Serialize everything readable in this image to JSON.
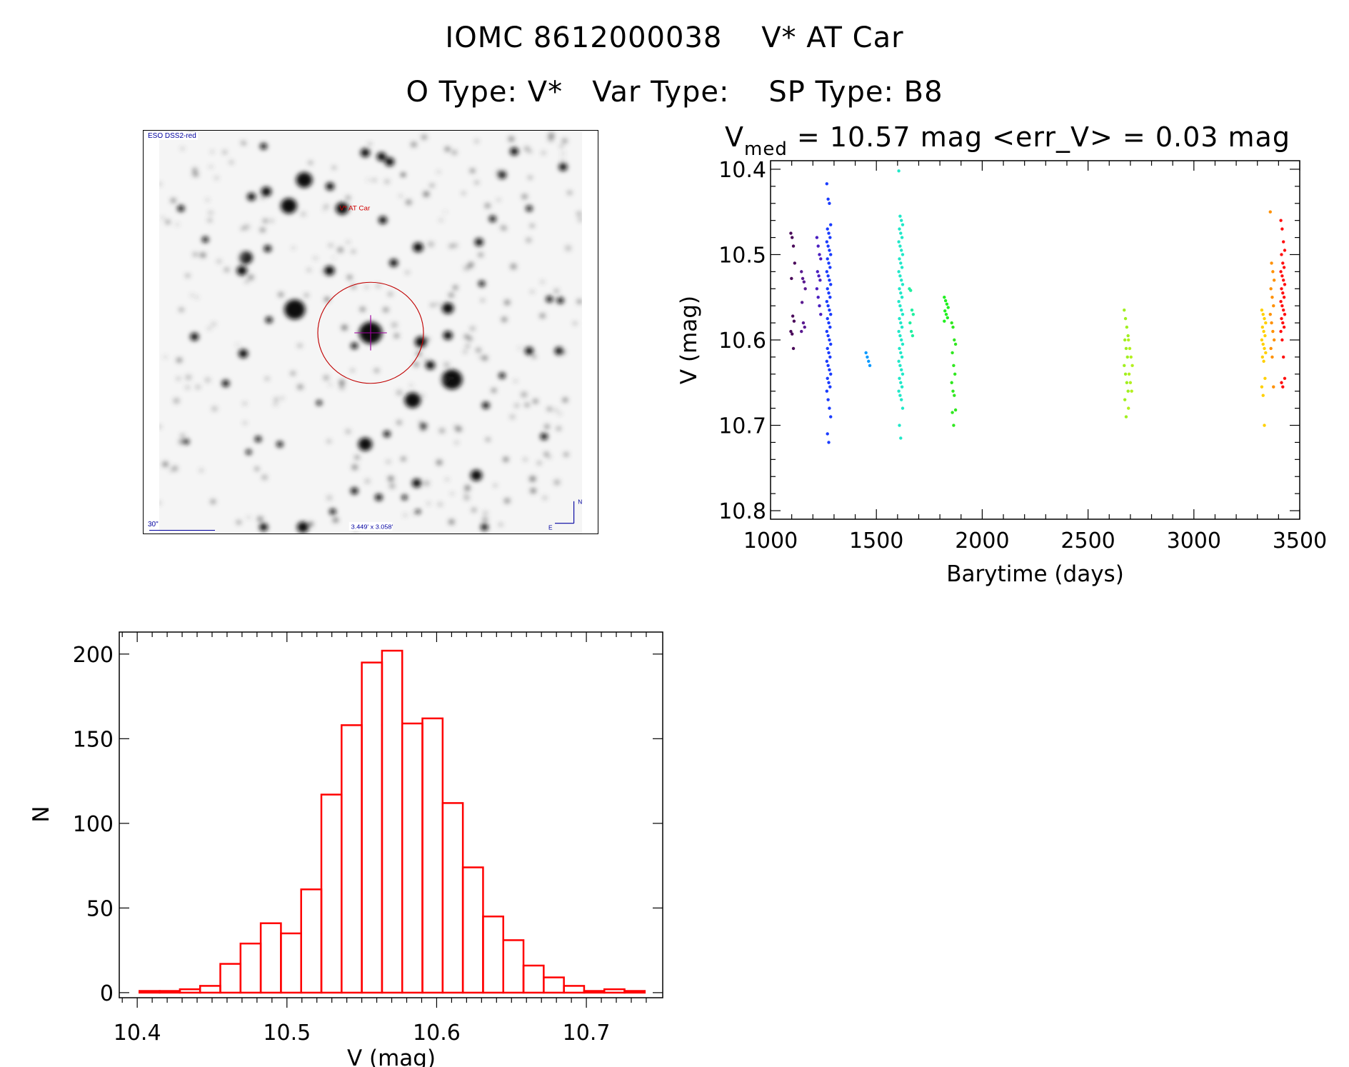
{
  "header": {
    "title_line1": "IOMC 8612000038    V* AT Car",
    "title_line2": "O Type: V*   Var Type:    SP Type: B8",
    "stats": {
      "v_symbol": "V",
      "v_sub": "med",
      "text": " = 10.57 mag <err_V> = 0.03 mag"
    }
  },
  "sky_image": {
    "survey_label": "ESO DSS2-red",
    "target_label": "V* AT Car",
    "scale_label": "30\"",
    "fov_label": "3.449' x 3.058'",
    "north_label": "N",
    "east_label": "E",
    "overlay_color": "#c00000",
    "annotation_color": "#0000a0"
  },
  "chart_data": [
    {
      "type": "scatter",
      "title": "",
      "xlabel": "Barytime (days)",
      "ylabel": "V (mag)",
      "xlim": [
        1000,
        3500
      ],
      "ylim": [
        10.81,
        10.39
      ],
      "y_inverted": true,
      "xticks": [
        "1000",
        "1500",
        "2000",
        "2500",
        "3000",
        "3500"
      ],
      "yticks": [
        "10.4",
        "10.5",
        "10.6",
        "10.7",
        "10.8"
      ],
      "grid": false,
      "groups": [
        {
          "x": 1105,
          "color": "#4a0a5a",
          "y": [
            10.475,
            10.48,
            10.49,
            10.51,
            10.528,
            10.572,
            10.578,
            10.59,
            10.593,
            10.61
          ]
        },
        {
          "x": 1155,
          "color": "#5a1a90",
          "y": [
            10.52,
            10.528,
            10.532,
            10.54,
            10.556,
            10.58,
            10.585,
            10.59
          ]
        },
        {
          "x": 1228,
          "color": "#4a1ec0",
          "y": [
            10.48,
            10.49,
            10.5,
            10.505,
            10.52,
            10.525,
            10.53,
            10.54,
            10.55,
            10.56,
            10.57
          ]
        },
        {
          "x": 1275,
          "color": "#1a3cff",
          "y": [
            10.417,
            10.435,
            10.44,
            10.465,
            10.47,
            10.475,
            10.48,
            10.485,
            10.49,
            10.495,
            10.5,
            10.505,
            10.51,
            10.515,
            10.52,
            10.525,
            10.53,
            10.535,
            10.54,
            10.545,
            10.55,
            10.555,
            10.56,
            10.565,
            10.57,
            10.575,
            10.58,
            10.585,
            10.59,
            10.595,
            10.6,
            10.605,
            10.61,
            10.615,
            10.62,
            10.625,
            10.63,
            10.635,
            10.64,
            10.645,
            10.65,
            10.655,
            10.66,
            10.67,
            10.68,
            10.69,
            10.71,
            10.72
          ]
        },
        {
          "x": 1460,
          "color": "#0a9aff",
          "y": [
            10.615,
            10.62,
            10.625,
            10.63
          ]
        },
        {
          "x": 1615,
          "color": "#20e8c8",
          "y": [
            10.402,
            10.455,
            10.46,
            10.465,
            10.47,
            10.475,
            10.48,
            10.485,
            10.49,
            10.495,
            10.5,
            10.505,
            10.51,
            10.515,
            10.52,
            10.525,
            10.53,
            10.535,
            10.54,
            10.545,
            10.55,
            10.555,
            10.56,
            10.565,
            10.57,
            10.575,
            10.58,
            10.585,
            10.59,
            10.595,
            10.6,
            10.605,
            10.61,
            10.615,
            10.62,
            10.625,
            10.63,
            10.635,
            10.64,
            10.645,
            10.65,
            10.655,
            10.66,
            10.665,
            10.67,
            10.68,
            10.7,
            10.715
          ]
        },
        {
          "x": 1665,
          "color": "#20f0a0",
          "y": [
            10.54,
            10.542,
            10.565,
            10.57,
            10.58,
            10.59,
            10.595
          ]
        },
        {
          "x": 1830,
          "color": "#20f020",
          "y": [
            10.55,
            10.554,
            10.558,
            10.562,
            10.566,
            10.57,
            10.574,
            10.578
          ]
        },
        {
          "x": 1865,
          "color": "#30e820",
          "y": [
            10.58,
            10.585,
            10.6,
            10.605,
            10.615,
            10.63,
            10.64,
            10.65,
            10.66,
            10.665,
            10.682,
            10.685,
            10.7
          ]
        },
        {
          "x": 2680,
          "color": "#a0f020",
          "y": [
            10.565,
            10.575,
            10.585,
            10.595,
            10.6,
            10.61,
            10.62,
            10.63,
            10.64,
            10.65,
            10.66,
            10.67,
            10.69
          ]
        },
        {
          "x": 2700,
          "color": "#b4f020",
          "y": [
            10.6,
            10.61,
            10.62,
            10.63,
            10.64,
            10.65,
            10.66,
            10.68
          ]
        },
        {
          "x": 3330,
          "color": "#ffd000",
          "y": [
            10.565,
            10.57,
            10.575,
            10.58,
            10.585,
            10.59,
            10.595,
            10.6,
            10.605,
            10.61,
            10.615,
            10.62,
            10.625,
            10.645,
            10.655,
            10.665,
            10.7
          ]
        },
        {
          "x": 3370,
          "color": "#ff9000",
          "y": [
            10.45,
            10.51,
            10.52,
            10.53,
            10.54,
            10.55,
            10.56,
            10.57,
            10.58,
            10.59,
            10.6,
            10.61,
            10.62,
            10.655
          ]
        },
        {
          "x": 3420,
          "color": "#ff1010",
          "y": [
            10.46,
            10.47,
            10.485,
            10.495,
            10.5,
            10.51,
            10.515,
            10.52,
            10.525,
            10.53,
            10.535,
            10.54,
            10.545,
            10.55,
            10.555,
            10.56,
            10.565,
            10.57,
            10.575,
            10.58,
            10.585,
            10.59,
            10.6,
            10.62,
            10.645,
            10.65,
            10.655
          ]
        }
      ]
    },
    {
      "type": "bar",
      "subtype": "histogram",
      "title": "",
      "xlabel": "V (mag)",
      "ylabel": "N",
      "xlim": [
        10.388,
        10.751
      ],
      "ylim": [
        -3,
        213
      ],
      "xticks": [
        "10.4",
        "10.5",
        "10.6",
        "10.7"
      ],
      "yticks": [
        "0",
        "50",
        "100",
        "150",
        "200"
      ],
      "bin_start": 10.4015,
      "bin_width": 0.0135,
      "values": [
        1,
        1,
        2,
        4,
        17,
        29,
        41,
        35,
        61,
        117,
        158,
        195,
        202,
        159,
        162,
        112,
        74,
        45,
        31,
        16,
        9,
        4,
        1,
        2,
        1
      ],
      "bar_color": "#ff0000",
      "grid": false
    }
  ]
}
